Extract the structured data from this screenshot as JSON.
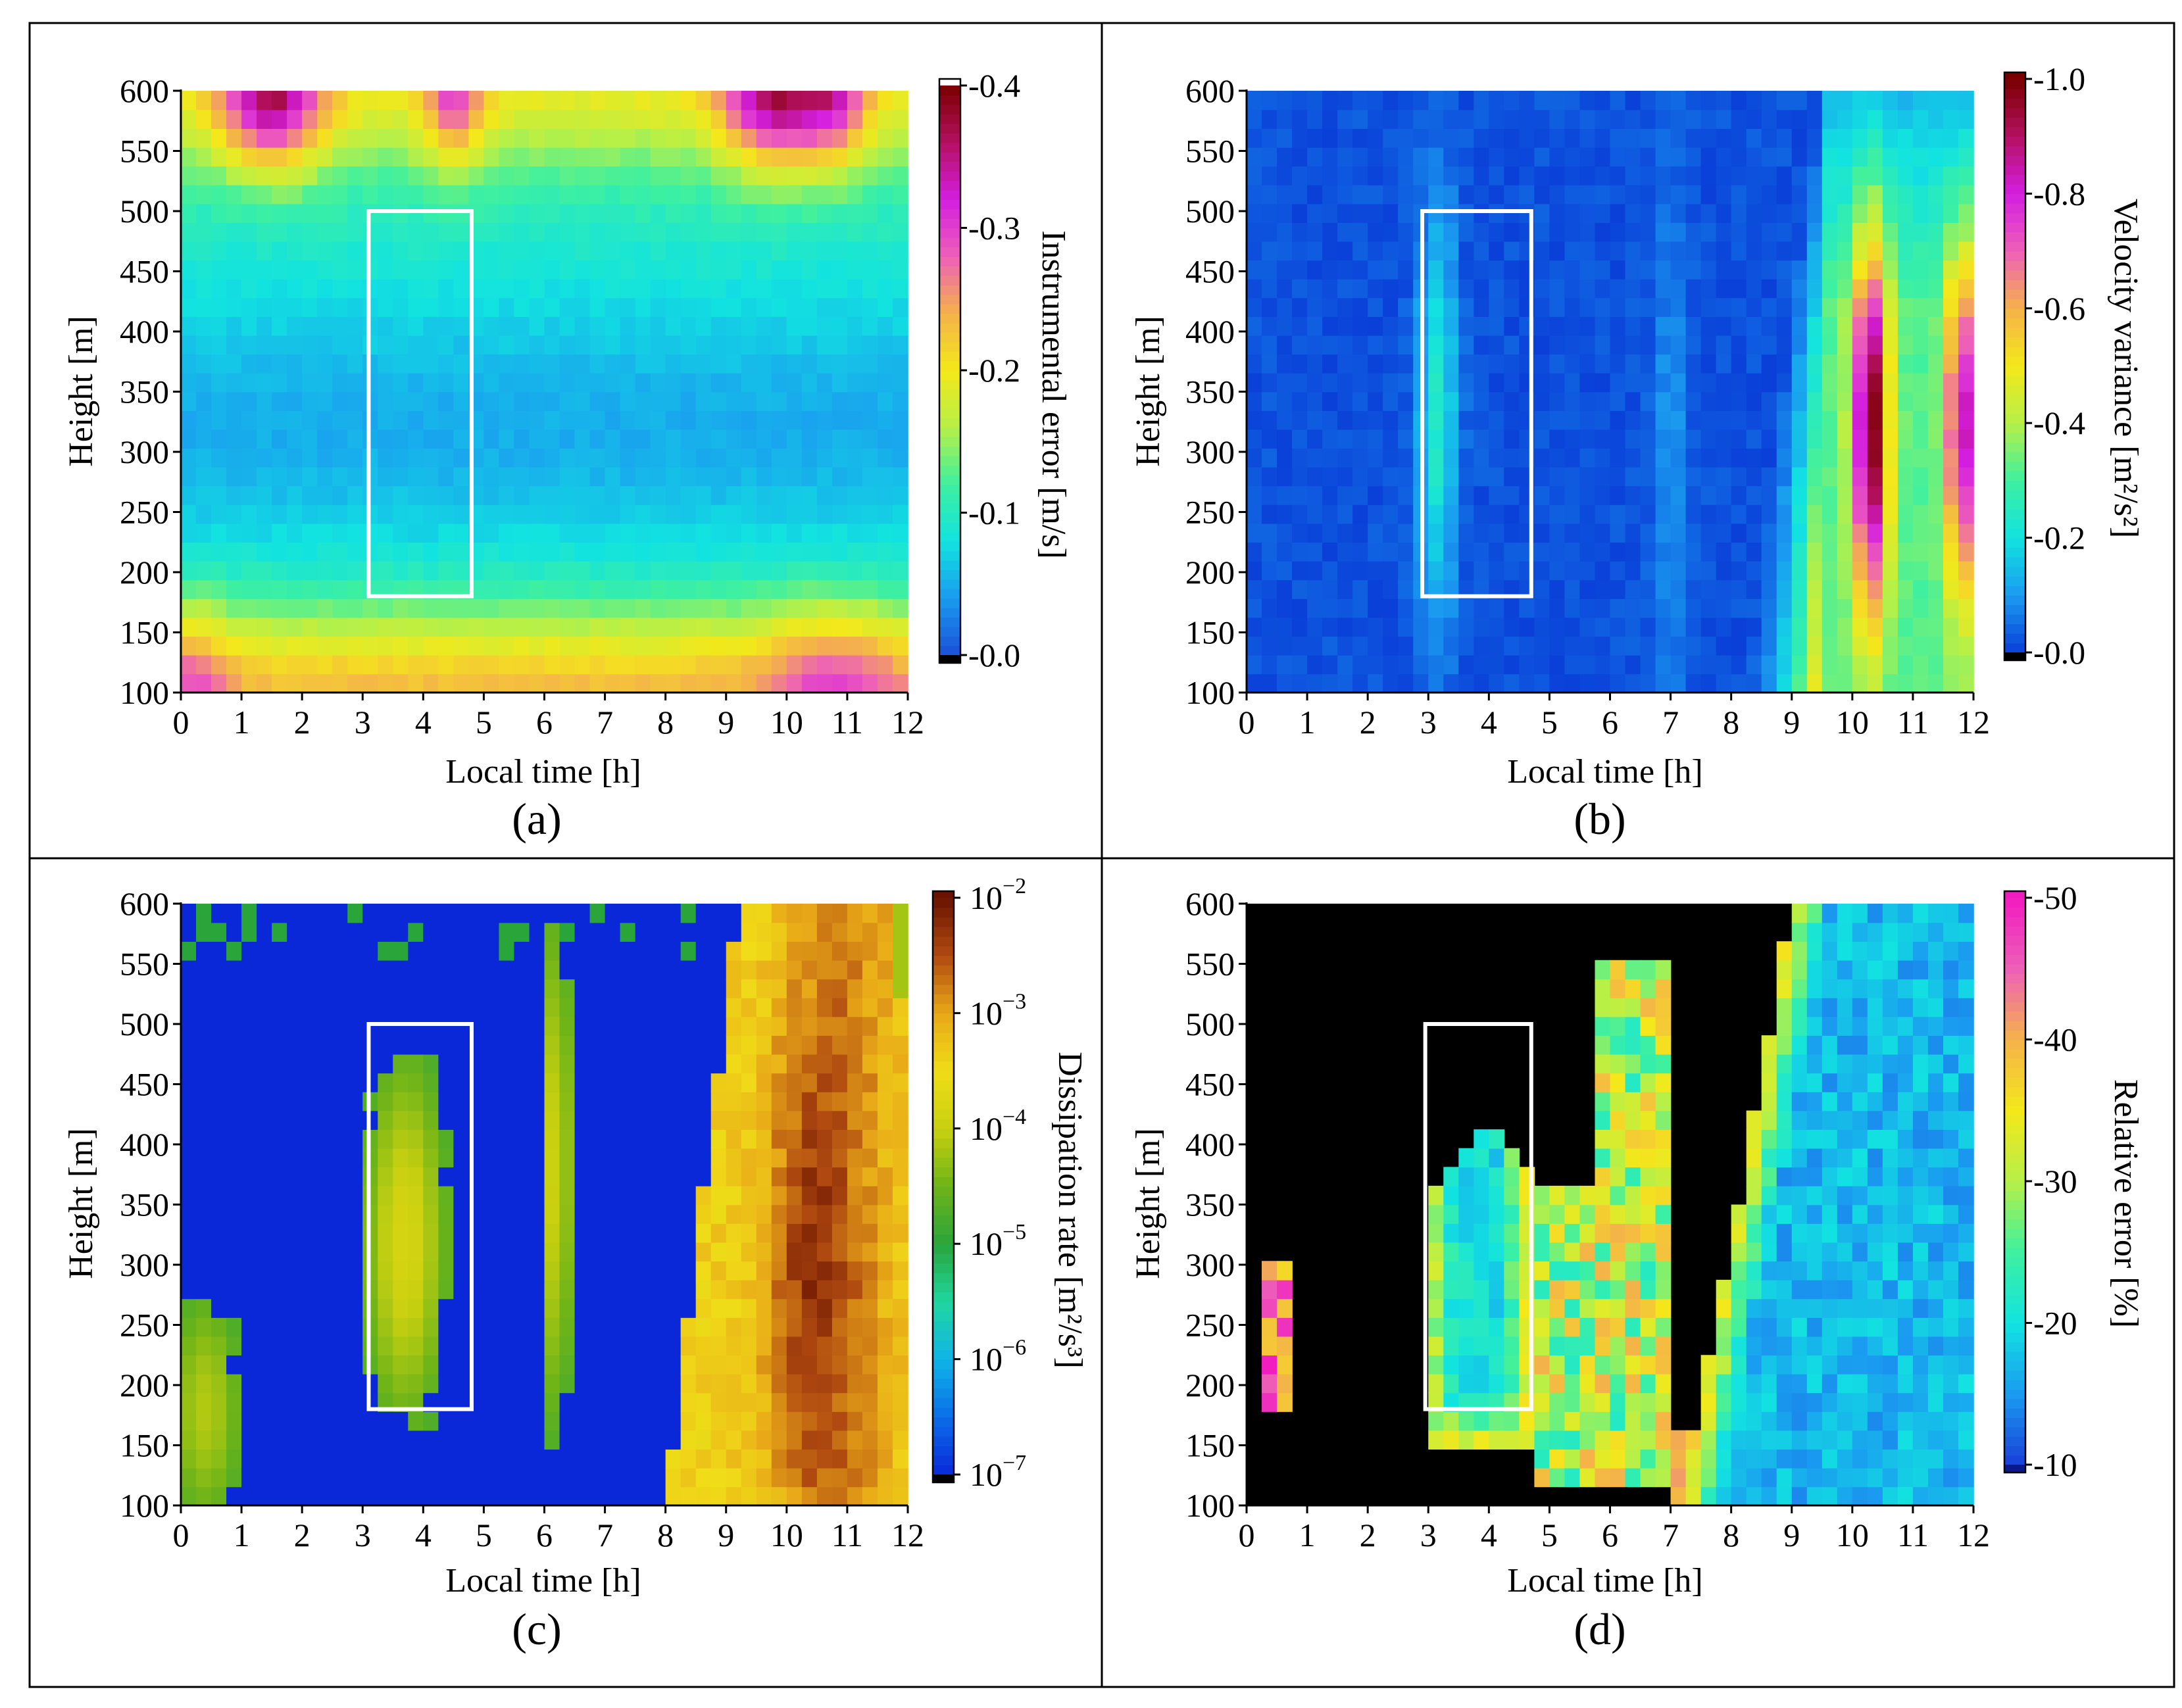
{
  "figure": {
    "panels": [
      "a",
      "b",
      "c",
      "d"
    ]
  },
  "chart_data": [
    {
      "id": "a",
      "type": "heatmap",
      "caption": "(a)",
      "xlabel": "Local time [h]",
      "ylabel": "Height [m]",
      "xlim": [
        0,
        12
      ],
      "ylim": [
        100,
        600
      ],
      "xticks": [
        "0",
        "1",
        "2",
        "3",
        "4",
        "5",
        "6",
        "7",
        "8",
        "9",
        "10",
        "11",
        "12"
      ],
      "yticks": [
        "100",
        "150",
        "200",
        "250",
        "300",
        "350",
        "400",
        "450",
        "500",
        "550",
        "600"
      ],
      "colorbar": {
        "label": "Instrumental error [m/s]",
        "scale": "linear",
        "min": 0.0,
        "max": 0.4,
        "ticks": [
          "-0.0",
          "-0.1",
          "-0.2",
          "-0.3",
          "-0.4"
        ],
        "colormap": [
          "#1a4fd8",
          "#1a9bf0",
          "#12e3e0",
          "#3ef0a0",
          "#b6f048",
          "#f4e81a",
          "#f4b24a",
          "#ee60b8",
          "#d41ee0",
          "#b41060",
          "#7a0000"
        ],
        "under": "#000000"
      },
      "highlight_box": {
        "t0": 3.1,
        "t1": 4.8,
        "h0": 180,
        "h1": 500
      },
      "field_model": "instrumental error: high near 550-600 m with peaks around 1.5 h, 4.5 h and 9.8 h, elevated near the surface, minimum around 300-350 m"
    },
    {
      "id": "b",
      "type": "heatmap",
      "caption": "(b)",
      "xlabel": "Local time [h]",
      "ylabel": "Height [m]",
      "xlim": [
        0,
        12
      ],
      "ylim": [
        100,
        600
      ],
      "xticks": [
        "0",
        "1",
        "2",
        "3",
        "4",
        "5",
        "6",
        "7",
        "8",
        "9",
        "10",
        "11",
        "12"
      ],
      "yticks": [
        "100",
        "150",
        "200",
        "250",
        "300",
        "350",
        "400",
        "450",
        "500",
        "550",
        "600"
      ],
      "colorbar": {
        "label": "Velocity variance [m²/s²]",
        "scale": "linear",
        "min": 0.0,
        "max": 1.0,
        "ticks": [
          "-0.0",
          "-0.2",
          "-0.4",
          "-0.6",
          "-0.8",
          "-1.0"
        ],
        "colormap": [
          "#0a3fd8",
          "#1a9bf0",
          "#12e3e0",
          "#3ef0a0",
          "#b6f048",
          "#f4e81a",
          "#f4b24a",
          "#ee60b8",
          "#d41ee0",
          "#b41060",
          "#7a0000"
        ],
        "under": "#000000"
      },
      "highlight_box": {
        "t0": 2.9,
        "t1": 4.7,
        "h0": 180,
        "h1": 500
      },
      "field_model": "variance low (~0) most of the night, a weak band near 3-3.5 h around 250-400 m, strong convection after 9 h with maxima about 1.0 m²/s² near 10.3 h and 11.8 h at 250-400 m"
    },
    {
      "id": "c",
      "type": "heatmap",
      "caption": "(c)",
      "xlabel": "Local time [h]",
      "ylabel": "Height [m]",
      "xlim": [
        0,
        12
      ],
      "ylim": [
        100,
        600
      ],
      "xticks": [
        "0",
        "1",
        "2",
        "3",
        "4",
        "5",
        "6",
        "7",
        "8",
        "9",
        "10",
        "11",
        "12"
      ],
      "yticks": [
        "100",
        "150",
        "200",
        "250",
        "300",
        "350",
        "400",
        "450",
        "500",
        "550",
        "600"
      ],
      "colorbar": {
        "label": "Dissipation rate [m²/s³]",
        "scale": "log",
        "min_exp": -7,
        "max_exp": -2,
        "ticks": [
          "10-7",
          "10-6",
          "10-5",
          "10-4",
          "10-3",
          "10-2"
        ],
        "colormap": [
          "#0a28d8",
          "#0a6ee8",
          "#10b4e6",
          "#20d6a0",
          "#2aa53a",
          "#6eb418",
          "#c8d010",
          "#f0dc18",
          "#e8a818",
          "#b04a10",
          "#6a1400"
        ],
        "under": "#000000"
      },
      "highlight_box": {
        "t0": 3.1,
        "t1": 4.8,
        "h0": 180,
        "h1": 500
      },
      "field_model": "dissipation rate near 1e-7 (blue) most of the night; turbulent streaks around 3-4.5 h and 6-6.5 h of order 1e-5 to 1e-4; strong dissipation after 9 h near 1e-3 with peaks near 1e-2 around 10.3 h"
    },
    {
      "id": "d",
      "type": "heatmap",
      "caption": "(d)",
      "xlabel": "Local time [h]",
      "ylabel": "Height [m]",
      "xlim": [
        0,
        12
      ],
      "ylim": [
        100,
        600
      ],
      "xticks": [
        "0",
        "1",
        "2",
        "3",
        "4",
        "5",
        "6",
        "7",
        "8",
        "9",
        "10",
        "11",
        "12"
      ],
      "yticks": [
        "100",
        "150",
        "200",
        "250",
        "300",
        "350",
        "400",
        "450",
        "500",
        "550",
        "600"
      ],
      "colorbar": {
        "label": "Relative error [%]",
        "scale": "linear",
        "min": 10,
        "max": 50,
        "ticks": [
          "-10",
          "-20",
          "-30",
          "-40",
          "-50"
        ],
        "colormap": [
          "#1a3fd8",
          "#1a9bf0",
          "#12e3e0",
          "#3ef0a0",
          "#b6f048",
          "#f4e81a",
          "#f4b24a",
          "#ee60b8",
          "#f01cc0"
        ],
        "under": "#0a1a8a"
      },
      "masked_color": "#000000",
      "highlight_box": {
        "t0": 2.95,
        "t1": 4.7,
        "h0": 180,
        "h1": 500
      },
      "field_model": "relative error only where turbulence is resolved (elsewhere black): low (~15-20%) inside the 3-4.5 h patch and in the daytime convective region after 9 h, higher (30-50%) at the patch edges"
    }
  ]
}
